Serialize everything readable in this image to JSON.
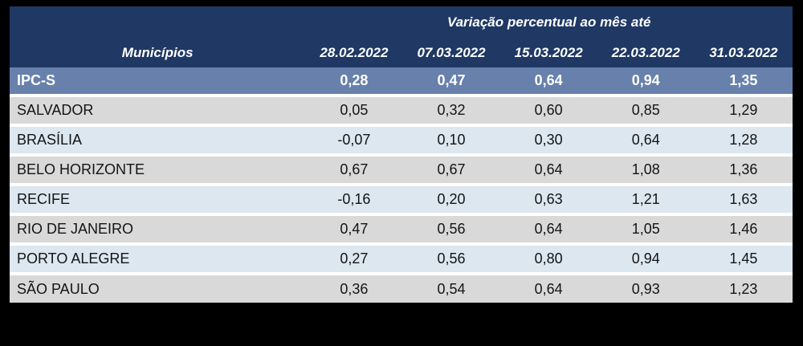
{
  "table": {
    "title": "Variação percentual ao mês até",
    "row_header": "Municípios",
    "columns": [
      "28.02.2022",
      "07.03.2022",
      "15.03.2022",
      "22.03.2022",
      "31.03.2022"
    ],
    "summary_row": {
      "name": "IPC-S",
      "values": [
        "0,28",
        "0,47",
        "0,64",
        "0,94",
        "1,35"
      ]
    },
    "rows": [
      {
        "name": "SALVADOR",
        "values": [
          "0,05",
          "0,32",
          "0,60",
          "0,85",
          "1,29"
        ]
      },
      {
        "name": "BRASÍLIA",
        "values": [
          "-0,07",
          "0,10",
          "0,30",
          "0,64",
          "1,28"
        ]
      },
      {
        "name": "BELO HORIZONTE",
        "values": [
          "0,67",
          "0,67",
          "0,64",
          "1,08",
          "1,36"
        ]
      },
      {
        "name": "RECIFE",
        "values": [
          "-0,16",
          "0,20",
          "0,63",
          "1,21",
          "1,63"
        ]
      },
      {
        "name": "RIO DE JANEIRO",
        "values": [
          "0,47",
          "0,56",
          "0,64",
          "1,05",
          "1,46"
        ]
      },
      {
        "name": "PORTO ALEGRE",
        "values": [
          "0,27",
          "0,56",
          "0,80",
          "0,94",
          "1,45"
        ]
      },
      {
        "name": "SÃO PAULO",
        "values": [
          "0,36",
          "0,54",
          "0,64",
          "0,93",
          "1,23"
        ]
      }
    ],
    "colors": {
      "header_bg": "#1F3864",
      "summary_bg": "#6780AC",
      "row_gray": "#D9D9D9",
      "row_blue": "#DCE7F0",
      "separator": "#FFFFFF",
      "header_text": "#FFFFFF",
      "body_text": "#141414",
      "canvas_bg": "#000000"
    }
  },
  "chart_data": {
    "type": "table",
    "title": "Variação percentual ao mês até",
    "row_header_label": "Municípios",
    "columns": [
      "28.02.2022",
      "07.03.2022",
      "15.03.2022",
      "22.03.2022",
      "31.03.2022"
    ],
    "rows": [
      {
        "name": "IPC-S",
        "values": [
          0.28,
          0.47,
          0.64,
          0.94,
          1.35
        ]
      },
      {
        "name": "SALVADOR",
        "values": [
          0.05,
          0.32,
          0.6,
          0.85,
          1.29
        ]
      },
      {
        "name": "BRASÍLIA",
        "values": [
          -0.07,
          0.1,
          0.3,
          0.64,
          1.28
        ]
      },
      {
        "name": "BELO HORIZONTE",
        "values": [
          0.67,
          0.67,
          0.64,
          1.08,
          1.36
        ]
      },
      {
        "name": "RECIFE",
        "values": [
          -0.16,
          0.2,
          0.63,
          1.21,
          1.63
        ]
      },
      {
        "name": "RIO DE JANEIRO",
        "values": [
          0.47,
          0.56,
          0.64,
          1.05,
          1.46
        ]
      },
      {
        "name": "PORTO ALEGRE",
        "values": [
          0.27,
          0.56,
          0.8,
          0.94,
          1.45
        ]
      },
      {
        "name": "SÃO PAULO",
        "values": [
          0.36,
          0.54,
          0.64,
          0.93,
          1.23
        ]
      }
    ],
    "layout": {
      "summary_row_highlighted": "IPC-S",
      "body_row_striping": [
        "gray",
        "light-blue"
      ],
      "values_format": "decimal comma, percent variation"
    }
  }
}
